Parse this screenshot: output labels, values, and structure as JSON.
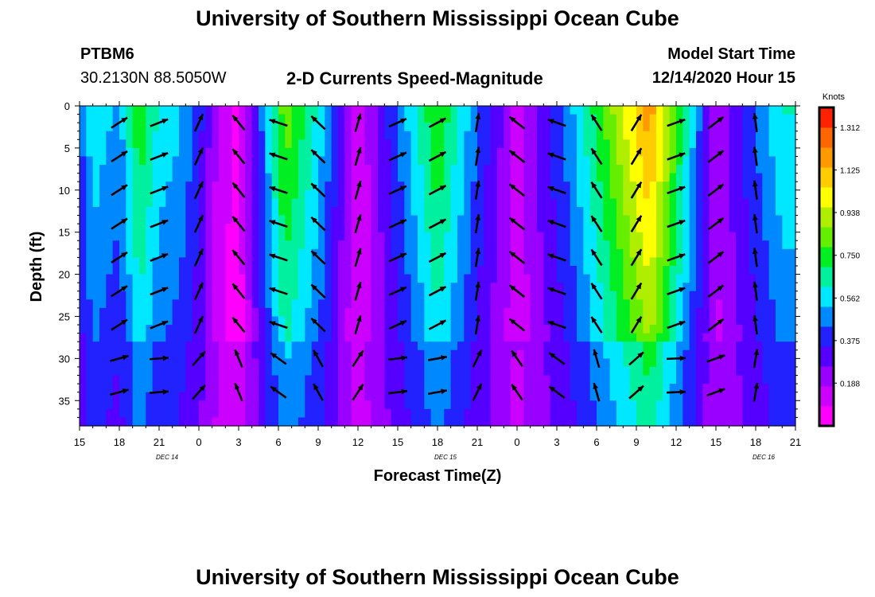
{
  "header": {
    "title_top": "University of Southern Mississippi Ocean Cube",
    "title_bottom": "University of Southern Mississippi Ocean Cube",
    "station_id": "PTBM6",
    "station_location": "30.2130N 88.5050W",
    "plot_title": "2-D Currents Speed-Magnitude",
    "model_start_label": "Model Start Time",
    "model_start_value": "12/14/2020 Hour 15"
  },
  "colors": {
    "palette": [
      "#ff00ff",
      "#cc00ff",
      "#9900ff",
      "#5500ff",
      "#2222ff",
      "#0088ff",
      "#00e8ff",
      "#00f0a0",
      "#00ee22",
      "#66ee00",
      "#b0ee00",
      "#ffff00",
      "#ffcc00",
      "#ff9900",
      "#ff6600",
      "#ff2200"
    ],
    "arrow": "#000000"
  },
  "chart_data": {
    "type": "heatmap",
    "title": "2-D Currents Speed-Magnitude",
    "xlabel": "Forecast Time(Z)",
    "ylabel": "Depth (ft)",
    "colorbar_label": "Knots",
    "colorbar_ticks": [
      "1.312",
      "1.125",
      "0.938",
      "0.750",
      "0.562",
      "0.375",
      "0.188"
    ],
    "colorbar_range": [
      0,
      1.4
    ],
    "x_ticks": [
      "15",
      "18",
      "21",
      "0",
      "3",
      "6",
      "9",
      "12",
      "15",
      "18",
      "21",
      "0",
      "3",
      "6",
      "9",
      "12",
      "15",
      "18",
      "21"
    ],
    "date_labels": [
      {
        "label": "DEC 14",
        "hour": 21
      },
      {
        "label": "DEC 15",
        "hour": 42
      },
      {
        "label": "DEC 16",
        "hour": 66
      }
    ],
    "xlim_hours": [
      0,
      54
    ],
    "y_ticks": [
      "0",
      "5",
      "10",
      "15",
      "20",
      "25",
      "30",
      "35"
    ],
    "ylim_ft": [
      0,
      38
    ],
    "speed_profiles_surface_knots": [
      {
        "hour": 0,
        "speed": 0.42
      },
      {
        "hour": 1,
        "speed": 0.6
      },
      {
        "hour": 3,
        "speed": 0.5
      },
      {
        "hour": 4.5,
        "speed": 0.78
      },
      {
        "hour": 6,
        "speed": 0.6
      },
      {
        "hour": 7.5,
        "speed": 0.55
      },
      {
        "hour": 9,
        "speed": 0.4
      },
      {
        "hour": 10.5,
        "speed": 0.15
      },
      {
        "hour": 12,
        "speed": 0.05
      },
      {
        "hour": 15.5,
        "speed": 0.85
      },
      {
        "hour": 18,
        "speed": 0.6
      },
      {
        "hour": 21,
        "speed": 0.1
      },
      {
        "hour": 24,
        "speed": 0.45
      },
      {
        "hour": 27,
        "speed": 0.8
      },
      {
        "hour": 30,
        "speed": 0.45
      },
      {
        "hour": 33,
        "speed": 0.15
      },
      {
        "hour": 37,
        "speed": 0.5
      },
      {
        "hour": 43,
        "speed": 1.2
      },
      {
        "hour": 48,
        "speed": 0.2
      },
      {
        "hour": 53,
        "speed": 0.62
      }
    ]
  }
}
